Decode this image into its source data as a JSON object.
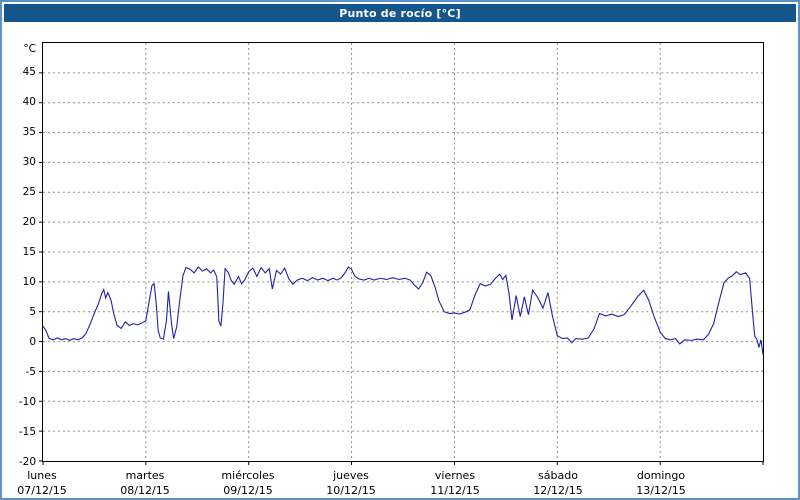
{
  "chart_data": {
    "type": "line",
    "title": "Punto de rocío [°C]",
    "ylabel": "°C",
    "xlabel": "",
    "ylim": [
      -20,
      50
    ],
    "xlim": [
      0,
      7
    ],
    "ytick_step": 5,
    "yticks": [
      45,
      40,
      35,
      30,
      25,
      20,
      15,
      10,
      5,
      0,
      -5,
      -10,
      -15,
      -20
    ],
    "grid": "dashed",
    "legend": "none",
    "series_name": "Punto de rocío",
    "line_color": "#2121a8",
    "x_days": [
      {
        "name": "lunes",
        "date": "07/12/15"
      },
      {
        "name": "martes",
        "date": "08/12/15"
      },
      {
        "name": "miércoles",
        "date": "09/12/15"
      },
      {
        "name": "jueves",
        "date": "10/12/15"
      },
      {
        "name": "viernes",
        "date": "11/12/15"
      },
      {
        "name": "sábado",
        "date": "12/12/15"
      },
      {
        "name": "domingo",
        "date": "13/12/15"
      }
    ],
    "points": [
      [
        0.0,
        2.6
      ],
      [
        0.03,
        1.8
      ],
      [
        0.06,
        0.5
      ],
      [
        0.1,
        0.3
      ],
      [
        0.14,
        0.6
      ],
      [
        0.18,
        0.3
      ],
      [
        0.22,
        0.5
      ],
      [
        0.26,
        0.2
      ],
      [
        0.3,
        0.5
      ],
      [
        0.34,
        0.3
      ],
      [
        0.38,
        0.6
      ],
      [
        0.42,
        1.4
      ],
      [
        0.46,
        3.0
      ],
      [
        0.5,
        4.8
      ],
      [
        0.54,
        6.4
      ],
      [
        0.57,
        8.0
      ],
      [
        0.59,
        8.7
      ],
      [
        0.61,
        7.3
      ],
      [
        0.63,
        8.2
      ],
      [
        0.66,
        7.0
      ],
      [
        0.69,
        4.5
      ],
      [
        0.72,
        2.7
      ],
      [
        0.76,
        2.2
      ],
      [
        0.8,
        3.3
      ],
      [
        0.84,
        2.7
      ],
      [
        0.88,
        3.0
      ],
      [
        0.92,
        2.8
      ],
      [
        0.96,
        3.1
      ],
      [
        1.0,
        3.5
      ],
      [
        1.03,
        6.5
      ],
      [
        1.06,
        9.4
      ],
      [
        1.08,
        9.7
      ],
      [
        1.1,
        6.5
      ],
      [
        1.12,
        1.8
      ],
      [
        1.14,
        0.6
      ],
      [
        1.17,
        0.4
      ],
      [
        1.2,
        3.5
      ],
      [
        1.22,
        8.4
      ],
      [
        1.25,
        3.0
      ],
      [
        1.27,
        0.5
      ],
      [
        1.3,
        2.5
      ],
      [
        1.33,
        7.0
      ],
      [
        1.36,
        11.0
      ],
      [
        1.39,
        12.4
      ],
      [
        1.43,
        12.1
      ],
      [
        1.47,
        11.5
      ],
      [
        1.51,
        12.5
      ],
      [
        1.55,
        11.8
      ],
      [
        1.59,
        12.2
      ],
      [
        1.63,
        11.5
      ],
      [
        1.66,
        12.0
      ],
      [
        1.69,
        10.8
      ],
      [
        1.71,
        3.4
      ],
      [
        1.73,
        2.6
      ],
      [
        1.75,
        6.5
      ],
      [
        1.77,
        12.2
      ],
      [
        1.8,
        11.6
      ],
      [
        1.83,
        10.2
      ],
      [
        1.86,
        9.6
      ],
      [
        1.9,
        10.9
      ],
      [
        1.93,
        9.7
      ],
      [
        1.96,
        10.3
      ],
      [
        2.0,
        11.7
      ],
      [
        2.04,
        12.3
      ],
      [
        2.08,
        10.9
      ],
      [
        2.12,
        12.4
      ],
      [
        2.16,
        11.5
      ],
      [
        2.2,
        12.2
      ],
      [
        2.23,
        8.8
      ],
      [
        2.27,
        11.9
      ],
      [
        2.31,
        11.3
      ],
      [
        2.35,
        12.3
      ],
      [
        2.39,
        10.5
      ],
      [
        2.43,
        9.6
      ],
      [
        2.47,
        10.3
      ],
      [
        2.52,
        10.6
      ],
      [
        2.57,
        10.2
      ],
      [
        2.62,
        10.7
      ],
      [
        2.67,
        10.3
      ],
      [
        2.72,
        10.6
      ],
      [
        2.77,
        10.2
      ],
      [
        2.82,
        10.6
      ],
      [
        2.86,
        10.3
      ],
      [
        2.9,
        10.7
      ],
      [
        2.94,
        11.6
      ],
      [
        2.97,
        12.5
      ],
      [
        3.0,
        12.1
      ],
      [
        3.03,
        11.0
      ],
      [
        3.07,
        10.5
      ],
      [
        3.12,
        10.3
      ],
      [
        3.17,
        10.6
      ],
      [
        3.22,
        10.3
      ],
      [
        3.28,
        10.6
      ],
      [
        3.34,
        10.4
      ],
      [
        3.4,
        10.7
      ],
      [
        3.46,
        10.4
      ],
      [
        3.52,
        10.6
      ],
      [
        3.57,
        10.3
      ],
      [
        3.61,
        9.5
      ],
      [
        3.65,
        8.8
      ],
      [
        3.69,
        9.8
      ],
      [
        3.73,
        11.6
      ],
      [
        3.77,
        11.1
      ],
      [
        3.81,
        9.2
      ],
      [
        3.85,
        6.8
      ],
      [
        3.9,
        5.0
      ],
      [
        3.95,
        4.7
      ],
      [
        4.0,
        4.8
      ],
      [
        4.05,
        4.6
      ],
      [
        4.1,
        4.9
      ],
      [
        4.15,
        5.3
      ],
      [
        4.2,
        7.8
      ],
      [
        4.25,
        9.7
      ],
      [
        4.3,
        9.3
      ],
      [
        4.35,
        9.6
      ],
      [
        4.4,
        10.6
      ],
      [
        4.44,
        11.3
      ],
      [
        4.47,
        10.4
      ],
      [
        4.5,
        11.1
      ],
      [
        4.53,
        8.2
      ],
      [
        4.56,
        3.6
      ],
      [
        4.6,
        7.7
      ],
      [
        4.64,
        4.2
      ],
      [
        4.68,
        7.5
      ],
      [
        4.72,
        4.5
      ],
      [
        4.76,
        8.6
      ],
      [
        4.81,
        7.4
      ],
      [
        4.86,
        5.6
      ],
      [
        4.91,
        8.2
      ],
      [
        4.95,
        4.5
      ],
      [
        5.0,
        1.0
      ],
      [
        5.05,
        0.5
      ],
      [
        5.1,
        0.6
      ],
      [
        5.14,
        -0.2
      ],
      [
        5.18,
        0.5
      ],
      [
        5.24,
        0.4
      ],
      [
        5.3,
        0.6
      ],
      [
        5.36,
        2.2
      ],
      [
        5.41,
        4.7
      ],
      [
        5.47,
        4.3
      ],
      [
        5.53,
        4.6
      ],
      [
        5.59,
        4.2
      ],
      [
        5.65,
        4.5
      ],
      [
        5.71,
        5.8
      ],
      [
        5.78,
        7.5
      ],
      [
        5.84,
        8.6
      ],
      [
        5.89,
        6.9
      ],
      [
        5.94,
        4.2
      ],
      [
        6.0,
        1.6
      ],
      [
        6.05,
        0.5
      ],
      [
        6.1,
        0.3
      ],
      [
        6.15,
        0.5
      ],
      [
        6.19,
        -0.4
      ],
      [
        6.24,
        0.3
      ],
      [
        6.3,
        0.2
      ],
      [
        6.36,
        0.4
      ],
      [
        6.42,
        0.3
      ],
      [
        6.47,
        1.2
      ],
      [
        6.52,
        3.0
      ],
      [
        6.57,
        6.5
      ],
      [
        6.62,
        9.8
      ],
      [
        6.66,
        10.6
      ],
      [
        6.7,
        11.0
      ],
      [
        6.74,
        11.7
      ],
      [
        6.78,
        11.2
      ],
      [
        6.83,
        11.5
      ],
      [
        6.87,
        10.6
      ],
      [
        6.9,
        4.5
      ],
      [
        6.92,
        0.9
      ],
      [
        6.94,
        0.4
      ],
      [
        6.96,
        -1.0
      ],
      [
        6.98,
        0.3
      ],
      [
        7.0,
        -2.2
      ]
    ]
  },
  "colors": {
    "title_bar": "#14568c",
    "frame": "#5b93c8",
    "line": "#2121a8",
    "grid": "#8c8c8c",
    "background": "#ffffff"
  }
}
